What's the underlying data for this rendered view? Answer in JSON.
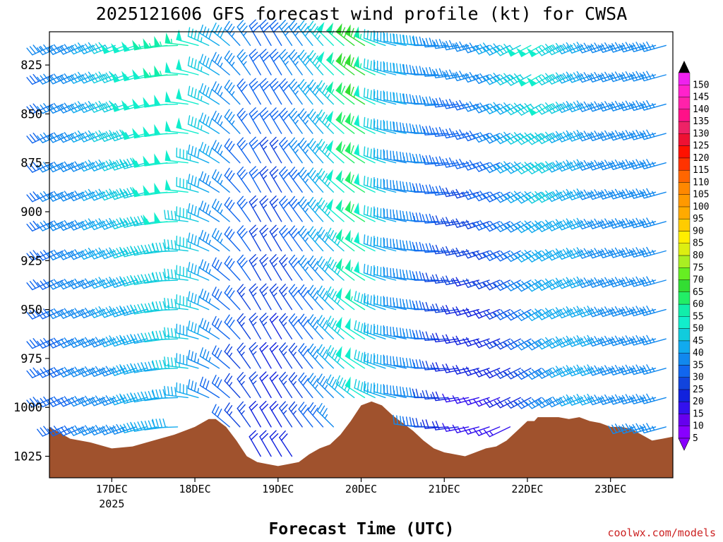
{
  "chart_data": {
    "type": "wind-barb-profile",
    "title": "2025121606 GFS forecast wind profile (kt) for CWSA",
    "xlabel": "Forecast Time (UTC)",
    "ylabel": "",
    "credit": "coolwx.com/models",
    "yaxis": {
      "ylim": [
        808,
        1036
      ],
      "ticks": [
        825,
        850,
        875,
        900,
        925,
        950,
        975,
        1000,
        1025
      ],
      "tick_labels": [
        "825",
        "850",
        "875",
        "900",
        "925",
        "950",
        "975",
        "1000",
        "1025"
      ]
    },
    "xaxis": {
      "xlim_hours": [
        0,
        180
      ],
      "ticks": [
        {
          "hours": 18,
          "label": "17DEC",
          "sublabel": "2025"
        },
        {
          "hours": 42,
          "label": "18DEC",
          "sublabel": ""
        },
        {
          "hours": 66,
          "label": "19DEC",
          "sublabel": ""
        },
        {
          "hours": 90,
          "label": "20DEC",
          "sublabel": ""
        },
        {
          "hours": 114,
          "label": "21DEC",
          "sublabel": ""
        },
        {
          "hours": 138,
          "label": "22DEC",
          "sublabel": ""
        },
        {
          "hours": 162,
          "label": "23DEC",
          "sublabel": ""
        }
      ]
    },
    "levels_hpa": [
      815,
      830,
      845,
      860,
      875,
      890,
      905,
      920,
      935,
      950,
      965,
      980,
      995,
      1010,
      1025
    ],
    "barb_time_step_hours": 3,
    "surface_pressure": {
      "hours": [
        0,
        6,
        12,
        18,
        24,
        30,
        36,
        42,
        46,
        48,
        51,
        54,
        57,
        60,
        63,
        66,
        69,
        72,
        75,
        78,
        81,
        84,
        87,
        90,
        93,
        96,
        99,
        102,
        105,
        108,
        111,
        114,
        117,
        120,
        123,
        126,
        129,
        132,
        135,
        138,
        140,
        141,
        144,
        147,
        150,
        153,
        156,
        159,
        162,
        165,
        168,
        171,
        174,
        177,
        180
      ],
      "pressure": [
        1010,
        1016,
        1018,
        1021,
        1020,
        1017,
        1014,
        1010,
        1006,
        1006,
        1010,
        1017,
        1025,
        1028,
        1029,
        1030,
        1029,
        1028,
        1024,
        1021,
        1019,
        1014,
        1007,
        999,
        997,
        999,
        1004,
        1008,
        1012,
        1017,
        1021,
        1023,
        1024,
        1025,
        1023,
        1021,
        1020,
        1017,
        1012,
        1007,
        1007,
        1005,
        1005,
        1005,
        1006,
        1005,
        1007,
        1008,
        1010,
        1010,
        1011,
        1014,
        1017,
        1016,
        1015
      ]
    },
    "wind_speed_kt": {
      "time_nodes_hours": [
        0,
        12,
        24,
        36,
        42,
        48,
        54,
        60,
        66,
        72,
        78,
        84,
        90,
        96,
        102,
        108,
        114,
        120,
        126,
        132,
        138,
        144,
        150,
        156,
        162,
        168,
        174,
        180
      ],
      "low_level": [
        30,
        32,
        35,
        40,
        40,
        32,
        26,
        22,
        18,
        24,
        30,
        38,
        48,
        42,
        36,
        34,
        22,
        14,
        12,
        14,
        20,
        30,
        36,
        38,
        38,
        36,
        35,
        35
      ],
      "upper_level": [
        32,
        38,
        50,
        55,
        52,
        42,
        36,
        32,
        30,
        35,
        42,
        52,
        70,
        45,
        38,
        38,
        35,
        34,
        36,
        40,
        48,
        52,
        45,
        38,
        36,
        35,
        34,
        34
      ]
    },
    "wind_direction_deg": {
      "time_nodes_hours": [
        0,
        24,
        36,
        48,
        60,
        66,
        78,
        90,
        96,
        108,
        120,
        132,
        144,
        156,
        180
      ],
      "values": [
        245,
        250,
        265,
        300,
        330,
        330,
        320,
        305,
        290,
        275,
        260,
        245,
        240,
        250,
        255
      ]
    },
    "colorbar": {
      "labels": [
        "5",
        "10",
        "15",
        "20",
        "25",
        "30",
        "35",
        "40",
        "45",
        "50",
        "55",
        "60",
        "65",
        "70",
        "75",
        "80",
        "85",
        "90",
        "95",
        "100",
        "105",
        "110",
        "115",
        "120",
        "125",
        "130",
        "135",
        "140",
        "145",
        "150"
      ],
      "colors": [
        "#8800ff",
        "#6600ee",
        "#3311ee",
        "#1122dd",
        "#1144dd",
        "#1166ee",
        "#1188ee",
        "#11aaee",
        "#11ccdd",
        "#11eecc",
        "#11eeaa",
        "#22ee66",
        "#33dd33",
        "#66ee22",
        "#aaee22",
        "#ddee11",
        "#ffee00",
        "#ffcc00",
        "#ffaa00",
        "#ff9900",
        "#ff8800",
        "#ff6600",
        "#ff3300",
        "#ff1100",
        "#ee1133",
        "#ee2266",
        "#ff1188",
        "#ff22aa",
        "#ff22cc",
        "#ee22ee"
      ]
    }
  }
}
